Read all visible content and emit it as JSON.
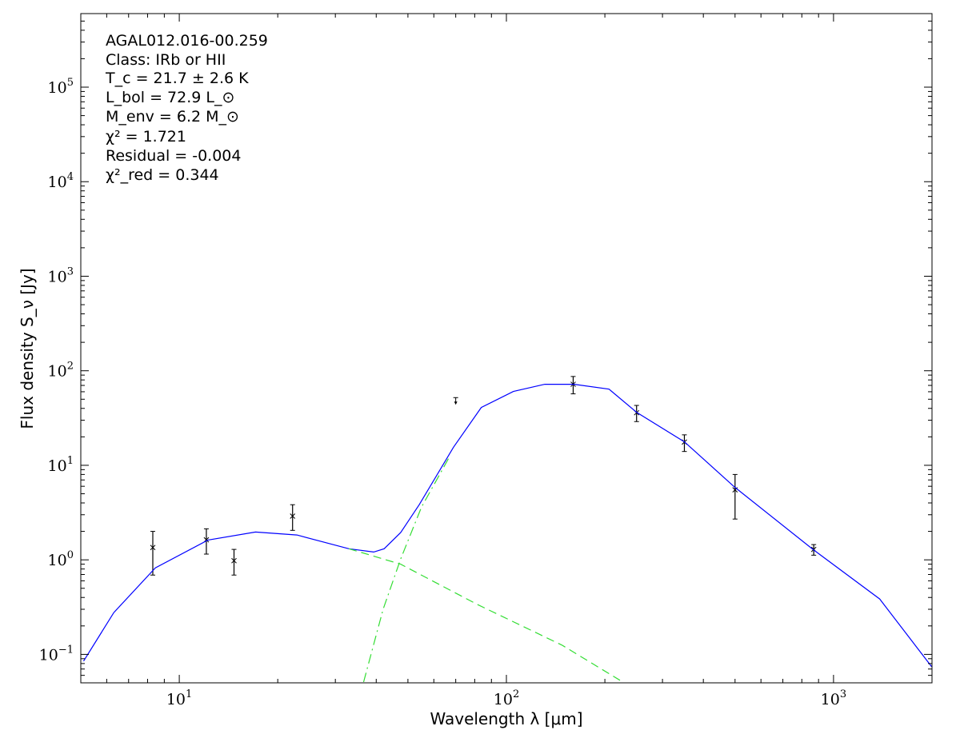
{
  "chart_data": {
    "type": "scatter",
    "title": "",
    "xlabel": "Wavelength λ [μm]",
    "ylabel": "Flux density S_ν [Jy]",
    "xscale": "log",
    "yscale": "log",
    "xlim": [
      5,
      2000
    ],
    "ylim": [
      0.05,
      600000
    ],
    "grid": false,
    "x_ticks": [
      {
        "base": "10",
        "exp": "1",
        "value": 10
      },
      {
        "base": "10",
        "exp": "2",
        "value": 100
      },
      {
        "base": "10",
        "exp": "3",
        "value": 1000
      }
    ],
    "y_ticks": [
      {
        "base": "10",
        "exp": "−1",
        "value": 0.1
      },
      {
        "base": "10",
        "exp": "0",
        "value": 1
      },
      {
        "base": "10",
        "exp": "1",
        "value": 10
      },
      {
        "base": "10",
        "exp": "2",
        "value": 100
      },
      {
        "base": "10",
        "exp": "3",
        "value": 1000
      },
      {
        "base": "10",
        "exp": "4",
        "value": 10000
      },
      {
        "base": "10",
        "exp": "5",
        "value": 100000
      }
    ],
    "annotations": {
      "source": "AGAL012.016-00.259",
      "class": "Class: IRb or HII",
      "tc": "T_c = 21.7 ± 2.6 K",
      "lbol": "L_bol = 72.9 L_⊙",
      "menv": "M_env = 6.2 M_⊙",
      "chi2": "χ² = 1.721",
      "residual": "Residual = -0.004",
      "chi2red": "χ²_red = 0.344"
    },
    "series": [
      {
        "name": "observed flux",
        "kind": "points",
        "color": "#000000",
        "points": [
          {
            "x": 8.3,
            "y": 1.35,
            "ylo": 0.69,
            "yhi": 2.0
          },
          {
            "x": 12.1,
            "y": 1.63,
            "ylo": 1.15,
            "yhi": 2.13
          },
          {
            "x": 14.7,
            "y": 0.98,
            "ylo": 0.69,
            "yhi": 1.29
          },
          {
            "x": 22.2,
            "y": 2.9,
            "ylo": 2.05,
            "yhi": 3.83
          },
          {
            "x": 160,
            "y": 72,
            "ylo": 57,
            "yhi": 87
          },
          {
            "x": 250,
            "y": 36,
            "ylo": 29,
            "yhi": 43
          },
          {
            "x": 350,
            "y": 17.6,
            "ylo": 14,
            "yhi": 21
          },
          {
            "x": 500,
            "y": 5.5,
            "ylo": 2.7,
            "yhi": 8.0
          },
          {
            "x": 870,
            "y": 1.29,
            "ylo": 1.12,
            "yhi": 1.45
          }
        ]
      },
      {
        "name": "upper limit",
        "kind": "upper_limit",
        "color": "#000000",
        "points": [
          {
            "x": 70,
            "y": 52
          }
        ]
      },
      {
        "name": "total model",
        "kind": "line",
        "style": "solid",
        "color": "#0000ff",
        "x": [
          5.1,
          6.31,
          8.45,
          12.24,
          17.1,
          22.9,
          33.0,
          39.3,
          42.3,
          47.5,
          54.1,
          68.9,
          83.8,
          105,
          131,
          161,
          206,
          250,
          350,
          499,
          865,
          1384,
          1995
        ],
        "y": [
          0.085,
          0.277,
          0.823,
          1.62,
          1.97,
          1.83,
          1.31,
          1.21,
          1.31,
          1.94,
          3.82,
          15.5,
          40.9,
          60.4,
          71.9,
          71.9,
          63.9,
          36.4,
          17.7,
          5.86,
          1.29,
          0.386,
          0.074
        ]
      },
      {
        "name": "warm component",
        "kind": "line",
        "style": "dashed",
        "color": "#33dd33",
        "x": [
          33.0,
          47.5,
          81.5,
          148,
          227
        ],
        "y": [
          1.31,
          0.9,
          0.337,
          0.125,
          0.051
        ]
      },
      {
        "name": "cold greybody",
        "kind": "line",
        "style": "dashdot",
        "color": "#33dd33",
        "x": [
          36.6,
          42,
          47.5,
          55,
          67.3
        ],
        "y": [
          0.051,
          0.3,
          1.02,
          3.6,
          12.7
        ]
      }
    ]
  }
}
